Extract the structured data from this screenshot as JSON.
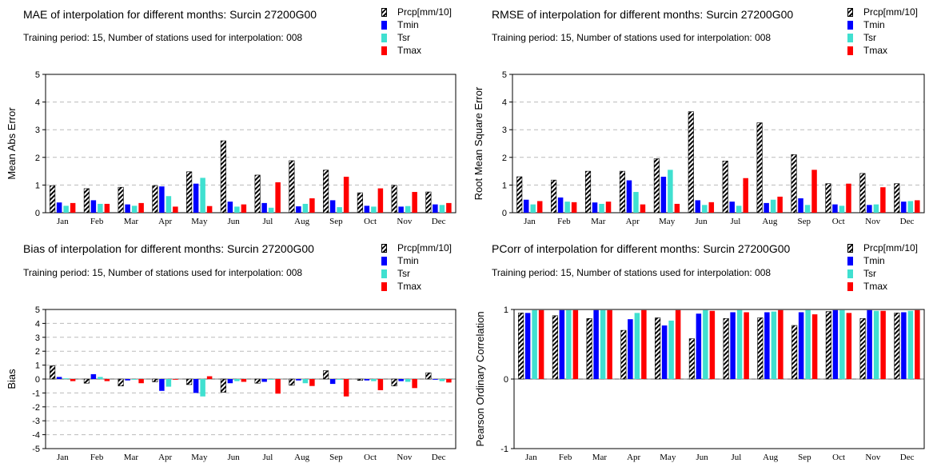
{
  "legend": {
    "items": [
      {
        "label": "Prcp[mm/10]",
        "color": "#000000",
        "pattern": "hatch"
      },
      {
        "label": "Tmin",
        "color": "#0000ff"
      },
      {
        "label": "Tsr",
        "color": "#40e0d0"
      },
      {
        "label": "Tmax",
        "color": "#ff0000"
      }
    ]
  },
  "chart_data": [
    {
      "type": "bar",
      "title": "MAE of interpolation for different months: Surcin  27200G00",
      "subtitle": "Training period: 15, Number of stations used for interpolation: 008",
      "ylabel": "Mean Abs Error",
      "ylim": [
        0,
        5
      ],
      "yticks": [
        0,
        1,
        2,
        3,
        4,
        5
      ],
      "categories": [
        "Jan",
        "Feb",
        "Mar",
        "Apr",
        "May",
        "Jun",
        "Jul",
        "Aug",
        "Sep",
        "Oct",
        "Nov",
        "Dec"
      ],
      "series": [
        {
          "name": "Prcp[mm/10]",
          "values": [
            0.98,
            0.87,
            0.92,
            0.98,
            1.48,
            2.6,
            1.36,
            1.88,
            1.54,
            0.72,
            0.99,
            0.75
          ]
        },
        {
          "name": "Tmin",
          "values": [
            0.37,
            0.45,
            0.3,
            0.95,
            1.05,
            0.4,
            0.35,
            0.23,
            0.45,
            0.25,
            0.22,
            0.3
          ]
        },
        {
          "name": "Tsr",
          "values": [
            0.25,
            0.32,
            0.25,
            0.6,
            1.26,
            0.22,
            0.18,
            0.32,
            0.2,
            0.22,
            0.24,
            0.28
          ]
        },
        {
          "name": "Tmax",
          "values": [
            0.35,
            0.32,
            0.35,
            0.22,
            0.24,
            0.3,
            1.1,
            0.52,
            1.3,
            0.88,
            0.75,
            0.35
          ]
        }
      ],
      "grid": true
    },
    {
      "type": "bar",
      "title": "RMSE of interpolation for different months: Surcin  27200G00",
      "subtitle": "Training period: 15, Number of stations used for interpolation: 008",
      "ylabel": "Root Mean Square Error",
      "ylim": [
        0,
        5
      ],
      "yticks": [
        0,
        1,
        2,
        3,
        4,
        5
      ],
      "categories": [
        "Jan",
        "Feb",
        "Mar",
        "Apr",
        "May",
        "Jun",
        "Jul",
        "Aug",
        "Sep",
        "Oct",
        "Nov",
        "Dec"
      ],
      "series": [
        {
          "name": "Prcp[mm/10]",
          "values": [
            1.3,
            1.18,
            1.5,
            1.5,
            1.95,
            3.65,
            1.87,
            3.25,
            2.1,
            1.05,
            1.42,
            1.05
          ]
        },
        {
          "name": "Tmin",
          "values": [
            0.47,
            0.55,
            0.37,
            1.17,
            1.3,
            0.45,
            0.4,
            0.35,
            0.52,
            0.3,
            0.28,
            0.4
          ]
        },
        {
          "name": "Tsr",
          "values": [
            0.3,
            0.4,
            0.32,
            0.75,
            1.55,
            0.28,
            0.25,
            0.47,
            0.28,
            0.25,
            0.3,
            0.42
          ]
        },
        {
          "name": "Tmax",
          "values": [
            0.42,
            0.38,
            0.4,
            0.3,
            0.32,
            0.38,
            1.25,
            0.58,
            1.55,
            1.05,
            0.92,
            0.45
          ]
        }
      ],
      "grid": true
    },
    {
      "type": "bar",
      "title": "Bias of interpolation for different months: Surcin  27200G00",
      "subtitle": "Training period: 15, Number of stations used for interpolation: 008",
      "ylabel": "Bias",
      "ylim": [
        -5,
        5
      ],
      "yticks": [
        -5,
        -4,
        -3,
        -2,
        -1,
        0,
        1,
        2,
        3,
        4,
        5
      ],
      "categories": [
        "Jan",
        "Feb",
        "Mar",
        "Apr",
        "May",
        "Jun",
        "Jul",
        "Aug",
        "Sep",
        "Oct",
        "Nov",
        "Dec"
      ],
      "series": [
        {
          "name": "Prcp[mm/10]",
          "values": [
            0.95,
            -0.3,
            -0.5,
            -0.2,
            -0.4,
            -0.95,
            -0.3,
            -0.45,
            0.6,
            -0.1,
            -0.5,
            0.45
          ]
        },
        {
          "name": "Tmin",
          "values": [
            0.15,
            0.35,
            -0.1,
            -0.85,
            -1.0,
            -0.3,
            -0.2,
            -0.1,
            -0.35,
            -0.1,
            -0.15,
            -0.05
          ]
        },
        {
          "name": "Tsr",
          "values": [
            0.05,
            0.15,
            -0.05,
            -0.55,
            -1.25,
            -0.15,
            -0.05,
            -0.3,
            -0.05,
            -0.15,
            -0.2,
            -0.15
          ]
        },
        {
          "name": "Tmax",
          "values": [
            -0.15,
            -0.15,
            -0.3,
            -0.05,
            0.2,
            -0.2,
            -1.05,
            -0.5,
            -1.25,
            -0.8,
            -0.65,
            -0.25
          ]
        }
      ],
      "grid": true
    },
    {
      "type": "bar",
      "title": "PCorr of interpolation for different months: Surcin  27200G00",
      "subtitle": "Training period: 15, Number of stations used for interpolation: 008",
      "ylabel": "Pearson Ordinary Correlation",
      "ylim": [
        -1,
        1
      ],
      "yticks": [
        -1,
        0,
        1
      ],
      "categories": [
        "Jan",
        "Feb",
        "Mar",
        "Apr",
        "May",
        "Jun",
        "Jul",
        "Aug",
        "Sep",
        "Oct",
        "Nov",
        "Dec"
      ],
      "series": [
        {
          "name": "Prcp[mm/10]",
          "values": [
            0.95,
            0.91,
            0.87,
            0.7,
            0.88,
            0.58,
            0.87,
            0.88,
            0.77,
            0.97,
            0.87,
            0.95
          ]
        },
        {
          "name": "Tmin",
          "values": [
            0.95,
            0.99,
            0.99,
            0.86,
            0.77,
            0.94,
            0.96,
            0.96,
            0.96,
            0.99,
            0.99,
            0.96
          ]
        },
        {
          "name": "Tsr",
          "values": [
            0.99,
            0.99,
            0.99,
            0.95,
            0.84,
            0.99,
            0.99,
            0.97,
            0.99,
            0.99,
            0.98,
            0.98
          ]
        },
        {
          "name": "Tmax",
          "values": [
            0.99,
            0.99,
            0.99,
            0.99,
            0.99,
            0.98,
            0.96,
            0.99,
            0.93,
            0.95,
            0.98,
            0.99
          ]
        }
      ],
      "grid": true
    }
  ]
}
